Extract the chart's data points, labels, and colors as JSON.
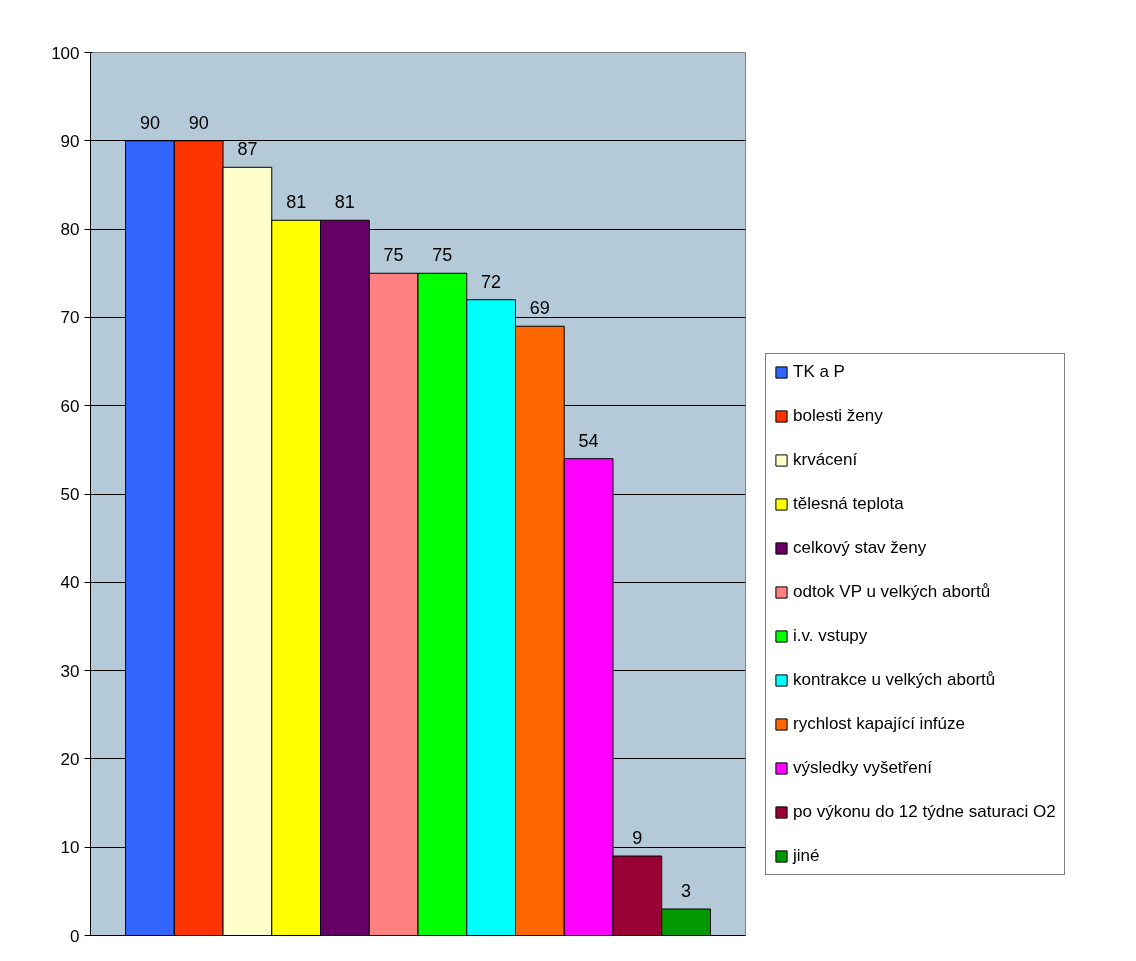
{
  "chart_data": {
    "type": "bar",
    "categories": [
      null
    ],
    "series": [
      {
        "name": "TK a P",
        "color": "#3366ff",
        "values": [
          90
        ]
      },
      {
        "name": "bolesti ženy",
        "color": "#ff3300",
        "values": [
          90
        ]
      },
      {
        "name": "krvácení",
        "color": "#ffffcc",
        "values": [
          87
        ]
      },
      {
        "name": "tělesná teplota",
        "color": "#ffff00",
        "values": [
          81
        ]
      },
      {
        "name": "celkový stav ženy",
        "color": "#660066",
        "values": [
          81
        ]
      },
      {
        "name": "odtok VP u velkých abortů",
        "color": "#ff8080",
        "values": [
          75
        ]
      },
      {
        "name": "i.v. vstupy",
        "color": "#00ff00",
        "values": [
          75
        ]
      },
      {
        "name": "kontrakce u velkých abortů",
        "color": "#00ffff",
        "values": [
          72
        ]
      },
      {
        "name": "rychlost kapající infúze",
        "color": "#ff6600",
        "values": [
          69
        ]
      },
      {
        "name": "výsledky vyšetření",
        "color": "#ff00ff",
        "values": [
          54
        ]
      },
      {
        "name": "po výkonu do 12 týdne saturaci O2",
        "color": "#990033",
        "values": [
          9
        ]
      },
      {
        "name": "jiné",
        "color": "#009900",
        "values": [
          3
        ]
      }
    ],
    "ylim": [
      0,
      100
    ],
    "yticks": [
      0,
      10,
      20,
      30,
      40,
      50,
      60,
      70,
      80,
      90,
      100
    ],
    "grid": "y",
    "legend": "right",
    "data_labels": true
  }
}
